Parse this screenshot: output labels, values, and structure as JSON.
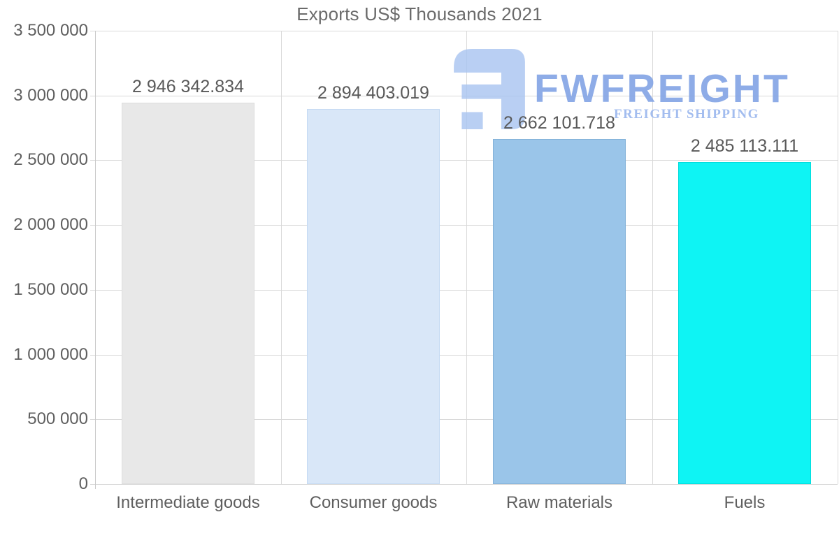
{
  "title": "Exports US$ Thousands 2021",
  "watermark": {
    "brand": "FWFREIGHT",
    "tagline": "FREIGHT SHIPPING",
    "brand_color": "#85a5e6",
    "tagline_color": "#9cb8ee",
    "mark_color": "#a9c4f0"
  },
  "chart_data": {
    "type": "bar",
    "title": "Exports US$ Thousands 2021",
    "categories": [
      "Intermediate goods",
      "Consumer goods",
      "Raw materials",
      "Fuels"
    ],
    "values": [
      2946342.834,
      2894403.019,
      2662101.718,
      2485113.111
    ],
    "value_labels": [
      "2 946 342.834",
      "2 894 403.019",
      "2 662 101.718",
      "2 485 113.111"
    ],
    "bar_colors": [
      "#e8e8e8",
      "#d9e7f8",
      "#9ac5e9",
      "#0ef4f4"
    ],
    "bar_border_colors": [
      "#dddddd",
      "#c5daf3",
      "#84b2d9",
      "#00dcdc"
    ],
    "xlabel": "",
    "ylabel": "",
    "ylim": [
      0,
      3500000
    ],
    "y_ticks": [
      0,
      500000,
      1000000,
      1500000,
      2000000,
      2500000,
      3000000,
      3500000
    ],
    "y_tick_labels": [
      "0",
      "500 000",
      "1 000 000",
      "1 500 000",
      "2 000 000",
      "2 500 000",
      "3 000 000",
      "3 500 000"
    ],
    "grid": true,
    "legend": false,
    "gridline_color": "#d9d9d9",
    "text_color": "#5f5f5f"
  }
}
